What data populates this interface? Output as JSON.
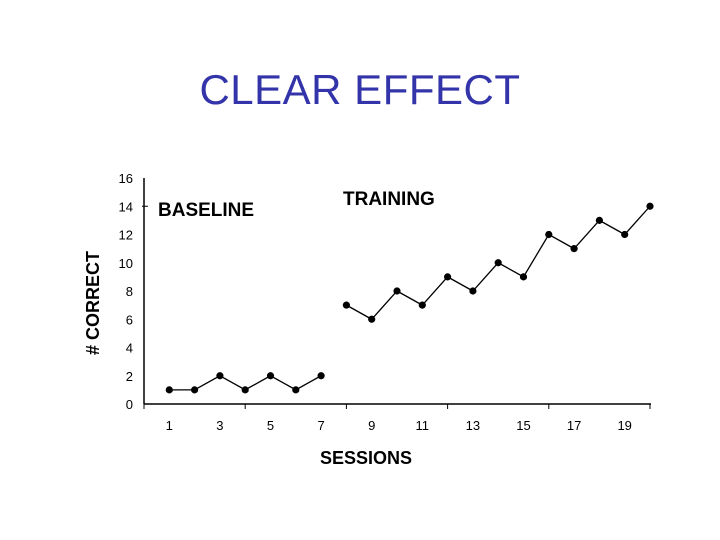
{
  "page": {
    "title": "CLEAR EFFECT"
  },
  "chart_data": {
    "type": "line",
    "title": "CLEAR EFFECT",
    "xlabel": "SESSIONS",
    "ylabel": "# CORRECT",
    "xlim": [
      0,
      20
    ],
    "ylim": [
      0,
      16
    ],
    "x_ticks": [
      1,
      3,
      5,
      7,
      9,
      11,
      13,
      15,
      17,
      19
    ],
    "y_ticks": [
      0,
      2,
      4,
      6,
      8,
      10,
      12,
      14,
      16
    ],
    "phase_change_x": 8,
    "phases": [
      {
        "label": "BASELINE"
      },
      {
        "label": "TRAINING"
      }
    ],
    "series": [
      {
        "x": [
          1,
          2,
          3,
          4,
          5,
          6,
          7
        ],
        "values": [
          1,
          1,
          2,
          1,
          2,
          1,
          2
        ]
      },
      {
        "x": [
          8,
          9,
          10,
          11,
          12,
          13,
          14,
          15,
          16,
          17,
          18,
          19,
          20
        ],
        "values": [
          7,
          6,
          8,
          7,
          9,
          8,
          10,
          9,
          12,
          11,
          13,
          12,
          14
        ]
      }
    ],
    "grid": false,
    "colors": {
      "line": "#000000",
      "marker": "#000000",
      "title": "#3333aa"
    }
  }
}
